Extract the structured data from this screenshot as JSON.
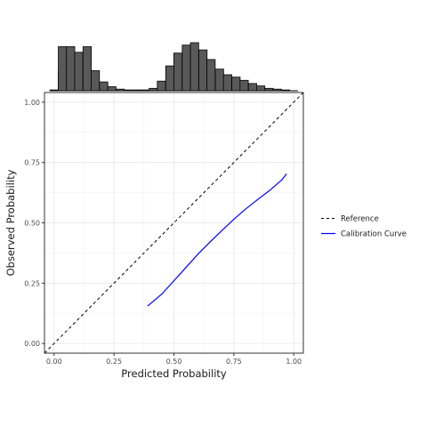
{
  "chart_data": {
    "type": "line",
    "xlabel": "Predicted Probability",
    "ylabel": "Observed Probability",
    "xlim": [
      -0.04,
      1.04
    ],
    "ylim": [
      -0.04,
      1.04
    ],
    "x_ticks": [
      "0.00",
      "0.25",
      "0.50",
      "0.75",
      "1.00"
    ],
    "y_ticks": [
      "0.00",
      "0.25",
      "0.50",
      "0.75",
      "1.00"
    ],
    "grid": true,
    "legend_position": "right",
    "series": [
      {
        "name": "Reference",
        "style": "dashed",
        "color": "#000000",
        "x": [
          -0.04,
          1.04
        ],
        "y": [
          -0.04,
          1.04
        ]
      },
      {
        "name": "Calibration Curve",
        "style": "solid",
        "color": "#0000ff",
        "x": [
          0.39,
          0.45,
          0.5,
          0.55,
          0.6,
          0.65,
          0.7,
          0.75,
          0.8,
          0.85,
          0.9,
          0.95,
          0.97
        ],
        "y": [
          0.155,
          0.205,
          0.26,
          0.315,
          0.37,
          0.42,
          0.468,
          0.515,
          0.558,
          0.597,
          0.635,
          0.678,
          0.703
        ]
      }
    ],
    "marginal_histogram": {
      "color": "#595959",
      "bin_width": 0.0345,
      "groups": [
        {
          "x": [
            0.035,
            0.069,
            0.103,
            0.138,
            0.172
          ],
          "counts": [
            24,
            30,
            15,
            6,
            2
          ]
        },
        {
          "x": [
            0.0,
            0.035,
            0.069,
            0.103,
            0.138,
            0.172,
            0.207,
            0.241,
            0.276,
            0.31,
            0.345,
            0.379,
            0.414,
            0.448,
            0.483,
            0.517,
            0.552,
            0.586,
            0.621,
            0.655,
            0.69,
            0.724,
            0.759,
            0.793,
            0.828,
            0.862,
            0.897,
            0.931,
            0.966,
            1.0
          ],
          "counts": [
            1,
            55,
            55,
            48,
            55,
            25,
            11,
            5,
            2,
            1,
            1,
            1,
            3,
            12,
            31,
            47,
            57,
            60,
            51,
            39,
            27,
            20,
            17,
            13,
            9,
            6,
            3,
            2,
            1,
            0
          ]
        }
      ]
    }
  }
}
